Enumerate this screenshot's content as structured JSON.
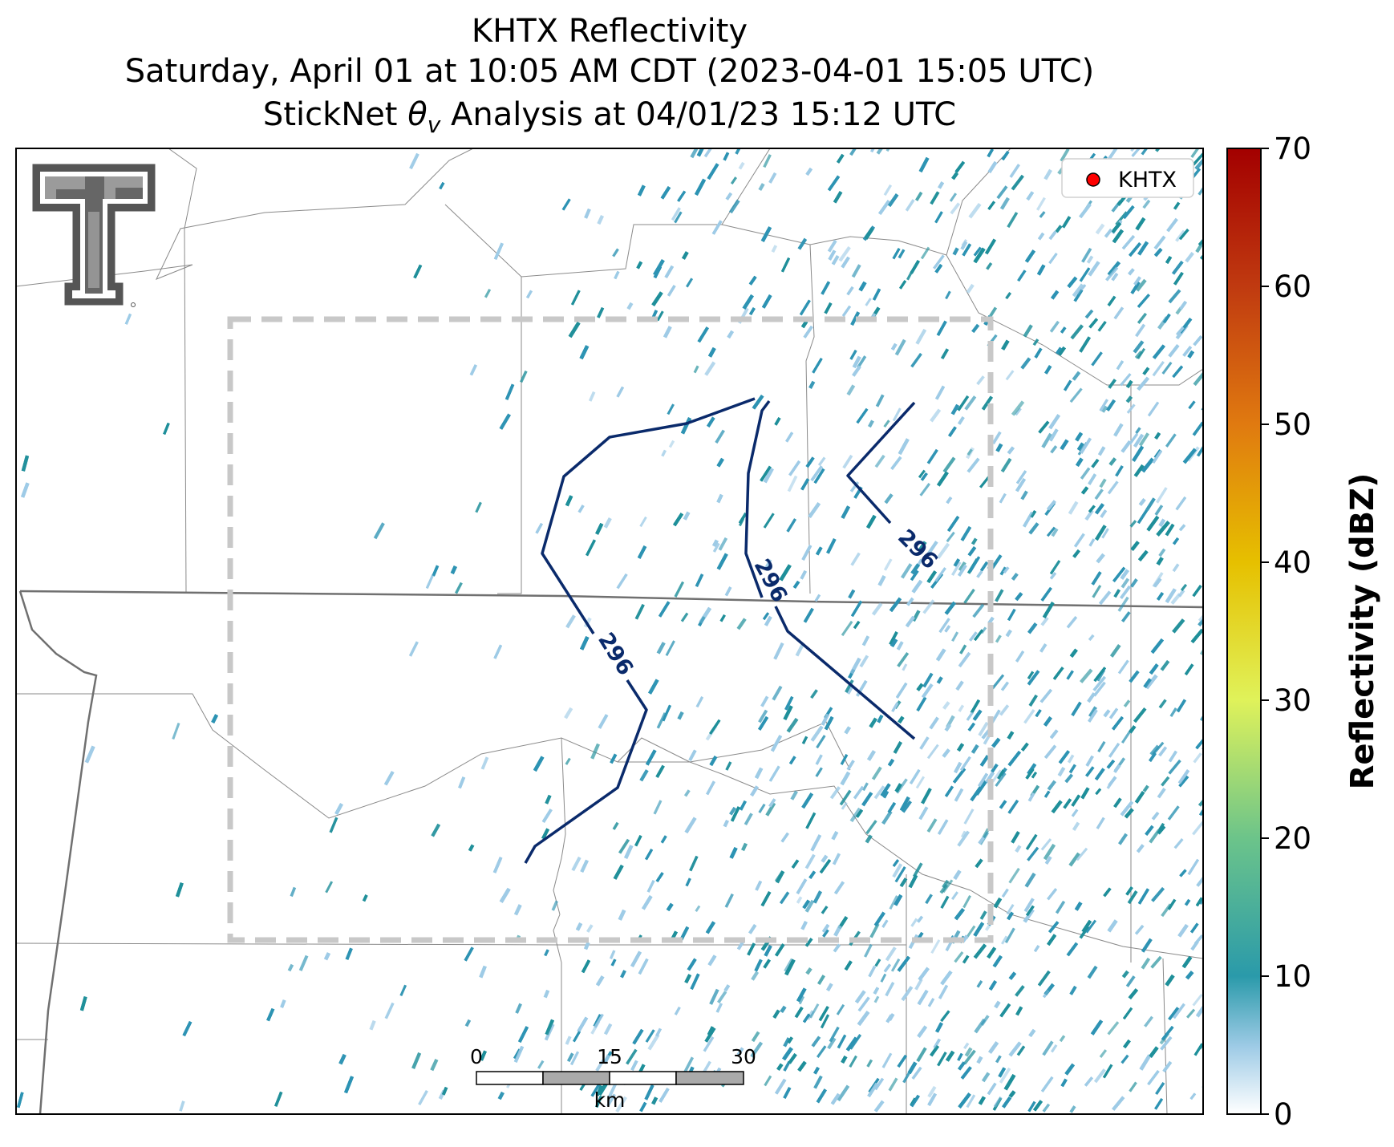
{
  "title": {
    "line1": "KHTX Reflectivity",
    "line2": "Saturday, April 01 at 10:05 AM CDT (2023-04-01 15:05 UTC)",
    "line3_prefix": "StickNet ",
    "line3_theta": "θ",
    "line3_sub": "v",
    "line3_suffix": " Analysis at 04/01/23 15:12 UTC"
  },
  "legend": {
    "marker_color": "#ff0000",
    "label": "KHTX"
  },
  "contours": {
    "label": "296",
    "color": "#0a2a6b"
  },
  "scale_bar": {
    "ticks": [
      "0",
      "15",
      "30"
    ],
    "unit": "km"
  },
  "colorbar": {
    "label": "Reflectivity (dBZ)",
    "min": 0,
    "max": 70,
    "ticks": [
      "0",
      "10",
      "20",
      "30",
      "40",
      "50",
      "60",
      "70"
    ],
    "colors": {
      "c0": "#ffffff",
      "c5": "#9ecbe6",
      "c10": "#2a9aaa",
      "c20": "#6cc48a",
      "c30": "#e0f25a",
      "c40": "#e6c000",
      "c50": "#e07a10",
      "c60": "#c03a10",
      "c70": "#a30000"
    }
  },
  "echo_color": "#2d93b3",
  "logo": {
    "text": "TT",
    "color": "#5a5a5a"
  }
}
